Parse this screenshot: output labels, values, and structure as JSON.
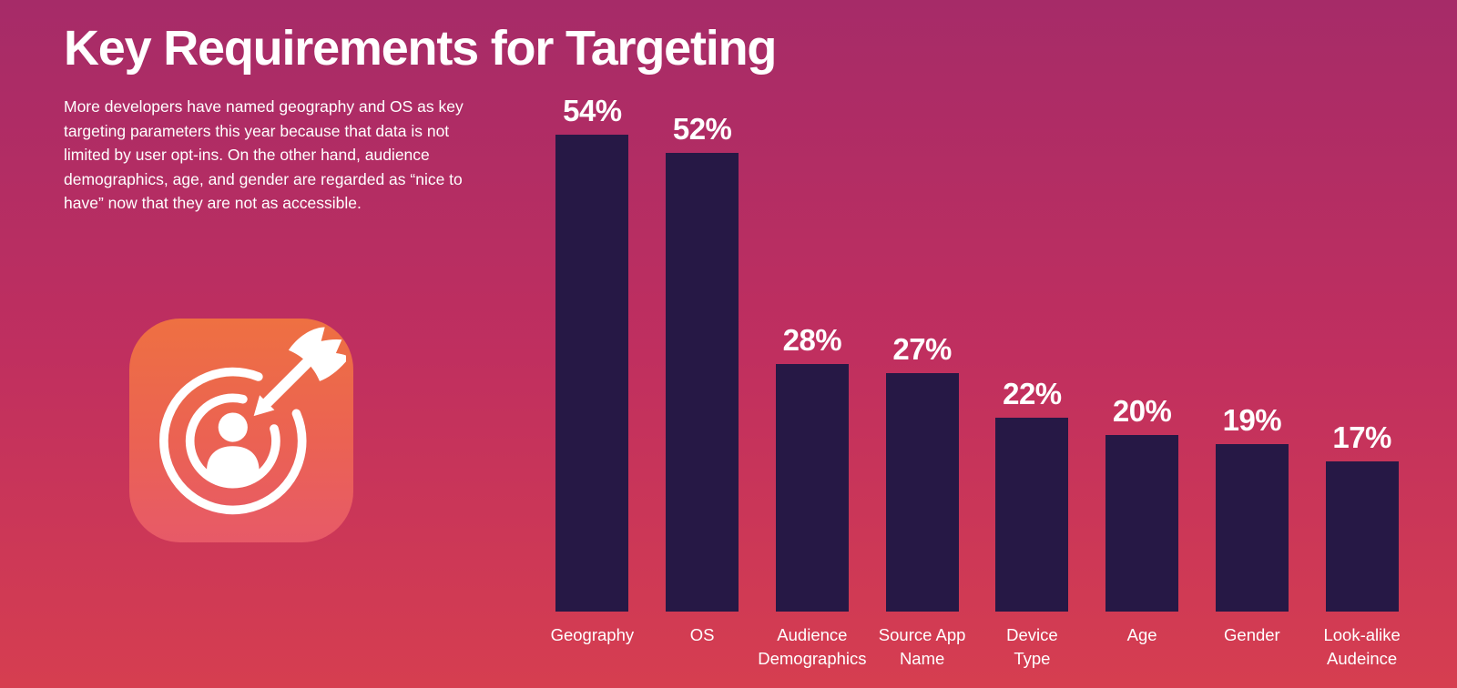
{
  "header": {
    "title": "Key Requirements for Targeting",
    "description": "More developers have named geography and OS as key targeting parameters this year because that data is not limited by user opt-ins. On the other hand, audience demographics, age, and gender are regarded as “nice to have” now that they are not as accessible."
  },
  "icon": {
    "name": "target-audience-icon",
    "gradient_top": "#ee7042",
    "gradient_bottom": "#e75a68",
    "glyph_color": "#ffffff"
  },
  "colors": {
    "background_top": "#a62b68",
    "background_middle": "#c02f5f",
    "background_bottom": "#d63e50",
    "bar": "#261845",
    "text": "#ffffff"
  },
  "chart_data": {
    "type": "bar",
    "title": "Key Requirements for Targeting",
    "categories": [
      "Geography",
      "OS",
      "Audience Demographics",
      "Source App Name",
      "Device Type",
      "Age",
      "Gender",
      "Look-alike Audeince"
    ],
    "category_lines": [
      [
        "Geography"
      ],
      [
        "OS"
      ],
      [
        "Audience",
        "Demographics"
      ],
      [
        "Source App",
        "Name"
      ],
      [
        "Device",
        "Type"
      ],
      [
        "Age"
      ],
      [
        "Gender"
      ],
      [
        "Look-alike",
        "Audeince"
      ]
    ],
    "values": [
      54,
      52,
      28,
      27,
      22,
      20,
      19,
      17
    ],
    "value_labels": [
      "54%",
      "52%",
      "28%",
      "27%",
      "22%",
      "20%",
      "19%",
      "17%"
    ],
    "value_suffix": "%",
    "xlabel": "",
    "ylabel": "",
    "ylim": [
      0,
      69
    ],
    "grid": false,
    "legend": false,
    "bar_color": "#261845",
    "label_color": "#ffffff"
  }
}
